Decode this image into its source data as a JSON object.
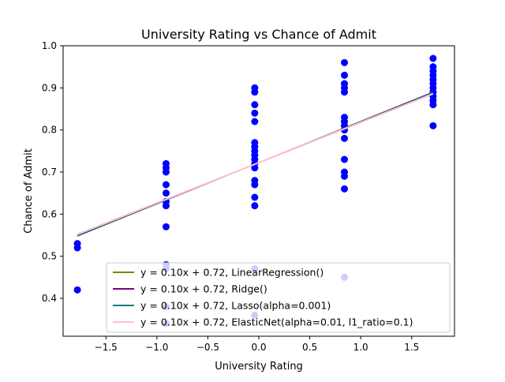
{
  "chart_data": {
    "type": "scatter",
    "title": "University Rating vs Chance of Admit",
    "xlabel": "University Rating",
    "ylabel": "Chance of Admit",
    "xlim": [
      -1.92,
      1.92
    ],
    "ylim": [
      0.31,
      1.0
    ],
    "xticks": [
      -1.5,
      -1.0,
      -0.5,
      0.0,
      0.5,
      1.0,
      1.5
    ],
    "xtick_labels": [
      "−1.5",
      "−1.0",
      "−0.5",
      "0.0",
      "0.5",
      "1.0",
      "1.5"
    ],
    "yticks": [
      0.4,
      0.5,
      0.6,
      0.7,
      0.8,
      0.9,
      1.0
    ],
    "ytick_labels": [
      "0.4",
      "0.5",
      "0.6",
      "0.7",
      "0.8",
      "0.9",
      "1.0"
    ],
    "grid": false,
    "legend_position": "lower-right",
    "scatter": {
      "color": "#0000ff",
      "points": [
        {
          "x": -1.78,
          "y": 0.53
        },
        {
          "x": -1.78,
          "y": 0.52
        },
        {
          "x": -1.78,
          "y": 0.42
        },
        {
          "x": -0.91,
          "y": 0.72
        },
        {
          "x": -0.91,
          "y": 0.71
        },
        {
          "x": -0.91,
          "y": 0.7
        },
        {
          "x": -0.91,
          "y": 0.67
        },
        {
          "x": -0.91,
          "y": 0.65
        },
        {
          "x": -0.91,
          "y": 0.63
        },
        {
          "x": -0.91,
          "y": 0.62
        },
        {
          "x": -0.91,
          "y": 0.57
        },
        {
          "x": -0.91,
          "y": 0.48
        },
        {
          "x": -0.91,
          "y": 0.47
        },
        {
          "x": -0.91,
          "y": 0.38
        },
        {
          "x": -0.91,
          "y": 0.34
        },
        {
          "x": -0.04,
          "y": 0.9
        },
        {
          "x": -0.04,
          "y": 0.89
        },
        {
          "x": -0.04,
          "y": 0.86
        },
        {
          "x": -0.04,
          "y": 0.84
        },
        {
          "x": -0.04,
          "y": 0.82
        },
        {
          "x": -0.04,
          "y": 0.77
        },
        {
          "x": -0.04,
          "y": 0.76
        },
        {
          "x": -0.04,
          "y": 0.75
        },
        {
          "x": -0.04,
          "y": 0.74
        },
        {
          "x": -0.04,
          "y": 0.73
        },
        {
          "x": -0.04,
          "y": 0.72
        },
        {
          "x": -0.04,
          "y": 0.71
        },
        {
          "x": -0.04,
          "y": 0.68
        },
        {
          "x": -0.04,
          "y": 0.67
        },
        {
          "x": -0.04,
          "y": 0.64
        },
        {
          "x": -0.04,
          "y": 0.62
        },
        {
          "x": -0.04,
          "y": 0.47
        },
        {
          "x": -0.04,
          "y": 0.36
        },
        {
          "x": 0.84,
          "y": 0.96
        },
        {
          "x": 0.84,
          "y": 0.93
        },
        {
          "x": 0.84,
          "y": 0.91
        },
        {
          "x": 0.84,
          "y": 0.9
        },
        {
          "x": 0.84,
          "y": 0.89
        },
        {
          "x": 0.84,
          "y": 0.83
        },
        {
          "x": 0.84,
          "y": 0.82
        },
        {
          "x": 0.84,
          "y": 0.81
        },
        {
          "x": 0.84,
          "y": 0.8
        },
        {
          "x": 0.84,
          "y": 0.78
        },
        {
          "x": 0.84,
          "y": 0.73
        },
        {
          "x": 0.84,
          "y": 0.7
        },
        {
          "x": 0.84,
          "y": 0.69
        },
        {
          "x": 0.84,
          "y": 0.66
        },
        {
          "x": 0.84,
          "y": 0.45
        },
        {
          "x": 1.71,
          "y": 0.97
        },
        {
          "x": 1.71,
          "y": 0.95
        },
        {
          "x": 1.71,
          "y": 0.94
        },
        {
          "x": 1.71,
          "y": 0.93
        },
        {
          "x": 1.71,
          "y": 0.92
        },
        {
          "x": 1.71,
          "y": 0.91
        },
        {
          "x": 1.71,
          "y": 0.9
        },
        {
          "x": 1.71,
          "y": 0.89
        },
        {
          "x": 1.71,
          "y": 0.88
        },
        {
          "x": 1.71,
          "y": 0.87
        },
        {
          "x": 1.71,
          "y": 0.86
        },
        {
          "x": 1.71,
          "y": 0.81
        }
      ]
    },
    "series": [
      {
        "name": "y = 0.10x + 0.72, LinearRegression()",
        "color": "#808000",
        "x": [
          -1.78,
          1.71
        ],
        "y": [
          0.548,
          0.89
        ]
      },
      {
        "name": "y = 0.10x + 0.72, Ridge()",
        "color": "#800080",
        "x": [
          -1.78,
          1.71
        ],
        "y": [
          0.548,
          0.89
        ]
      },
      {
        "name": "y = 0.10x + 0.72, Lasso(alpha=0.001)",
        "color": "#008080",
        "x": [
          -1.78,
          1.71
        ],
        "y": [
          0.549,
          0.889
        ]
      },
      {
        "name": "y = 0.10x + 0.72, ElasticNet(alpha=0.01, l1_ratio=0.1)",
        "color": "#ffc0cb",
        "x": [
          -1.78,
          1.71
        ],
        "y": [
          0.552,
          0.886
        ]
      }
    ]
  }
}
